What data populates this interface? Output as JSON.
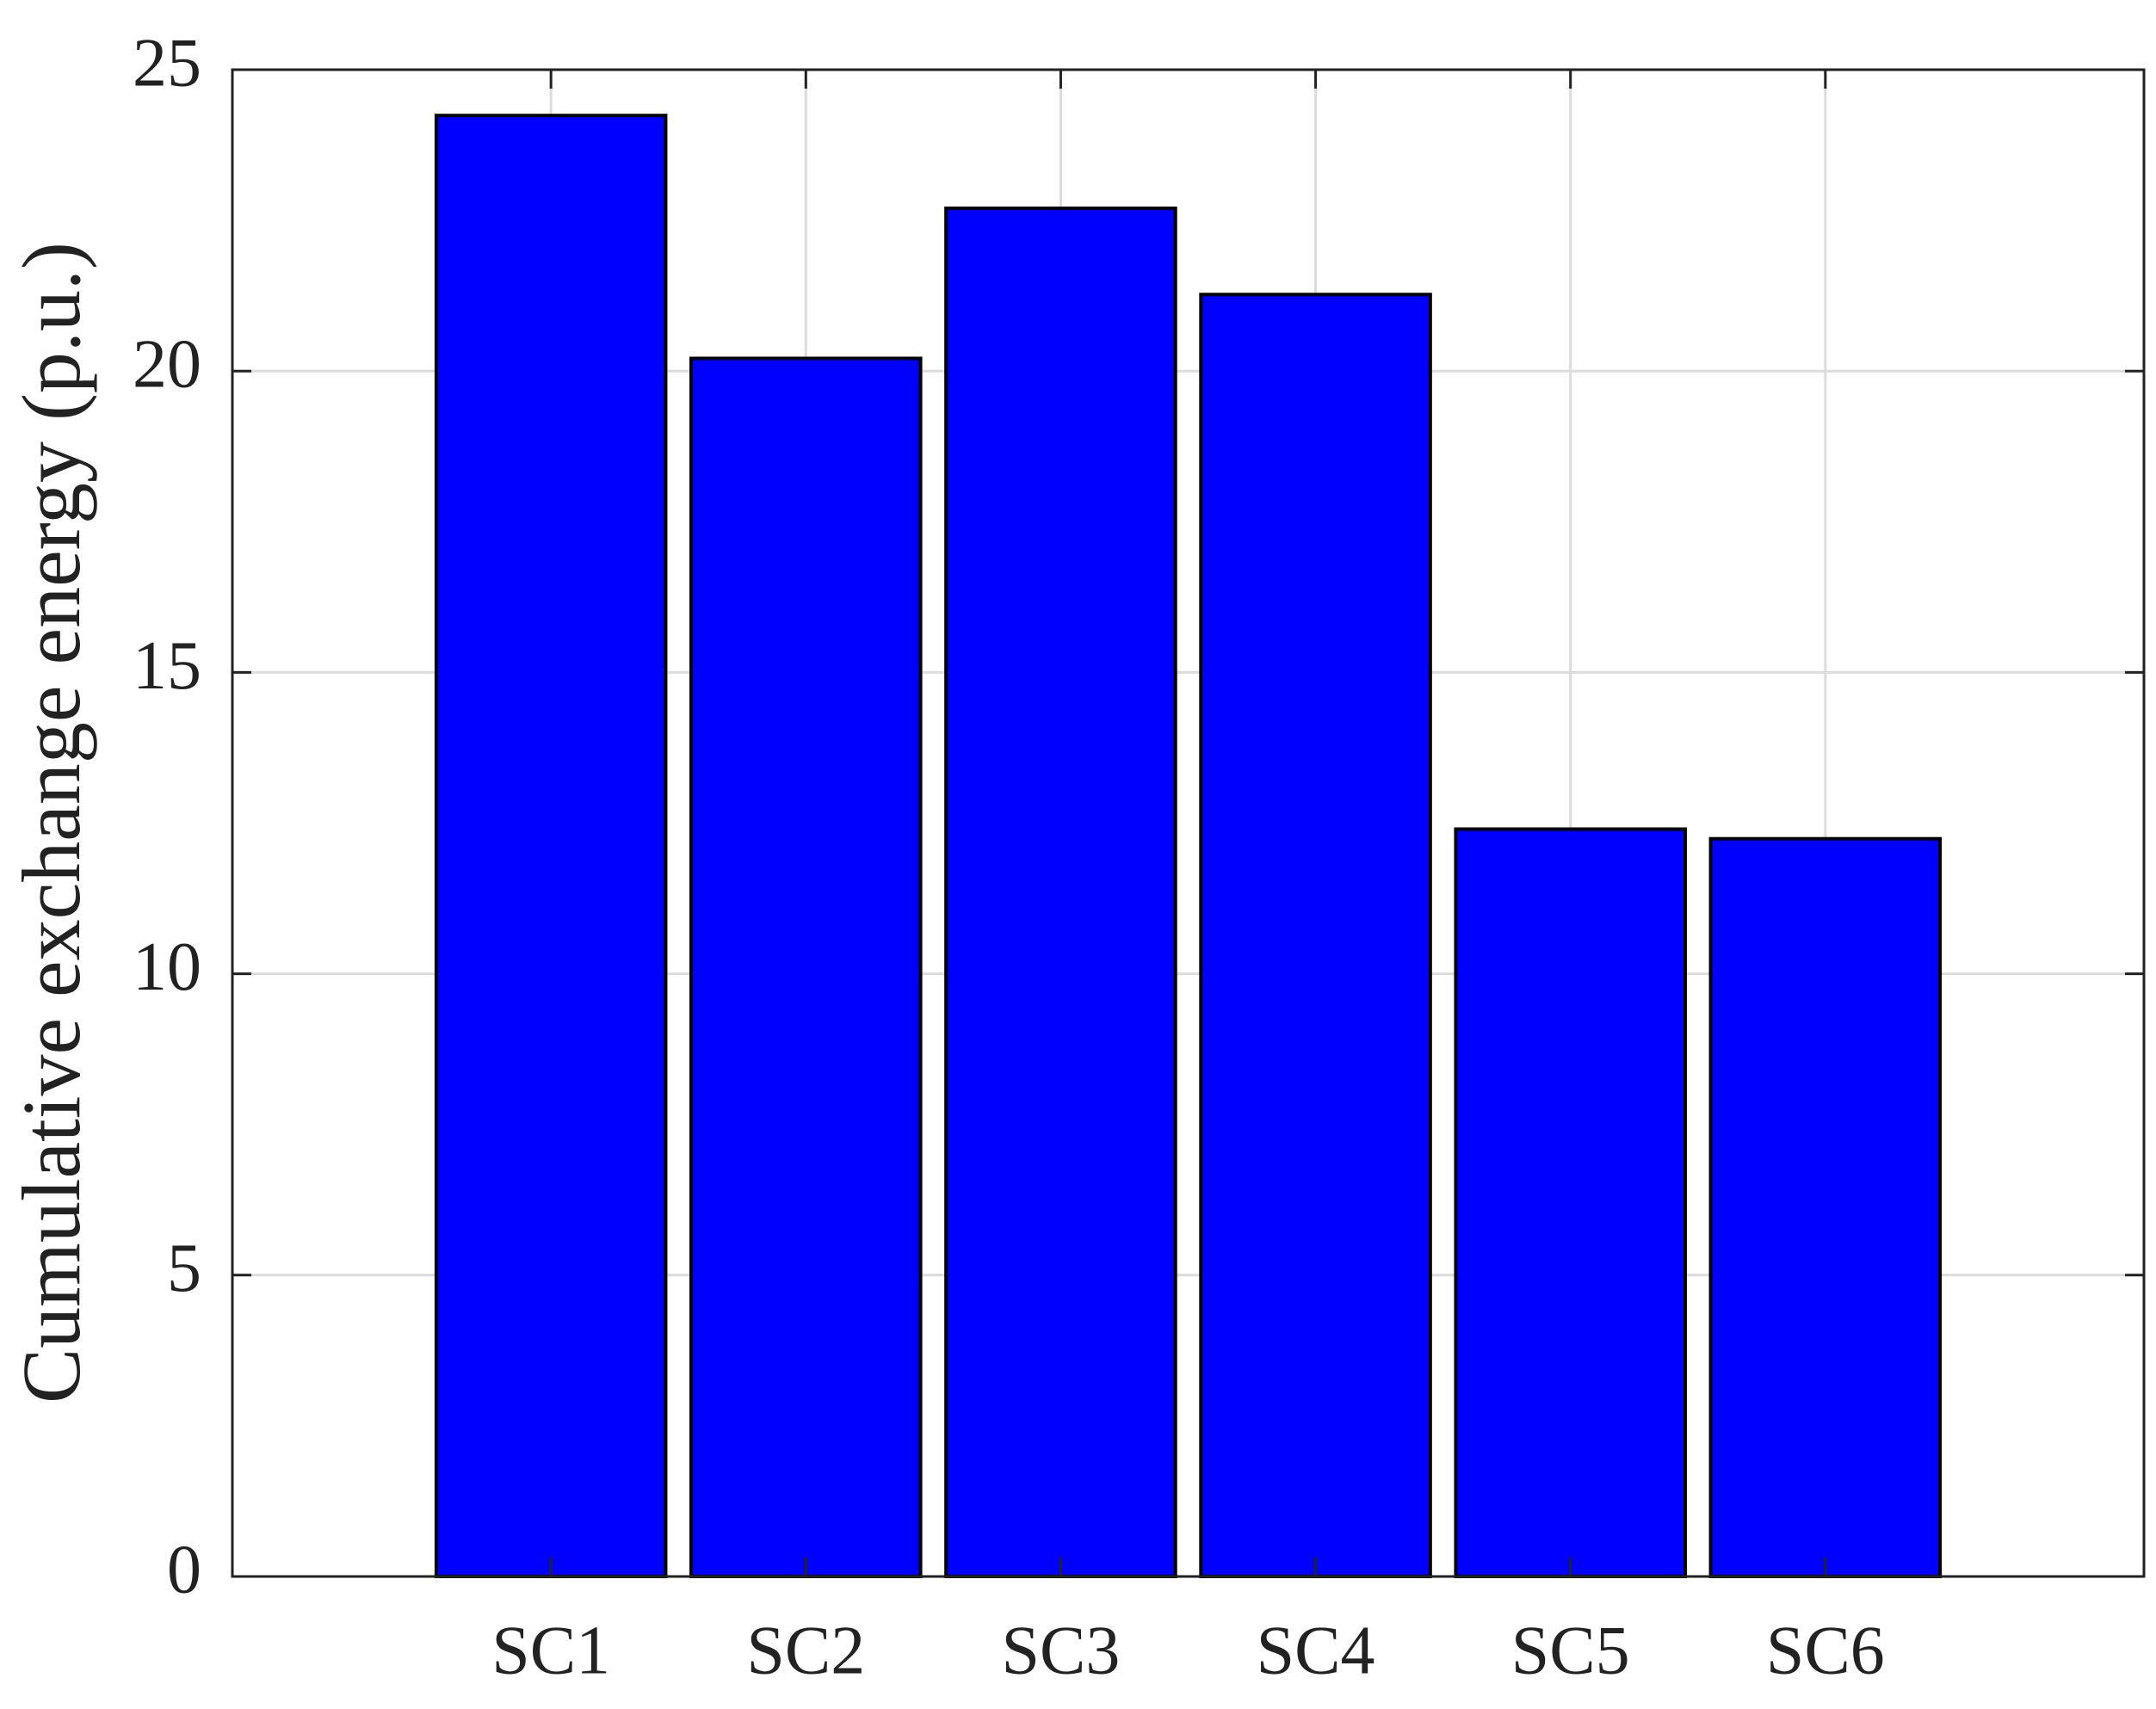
{
  "chart_data": {
    "type": "bar",
    "y_label": "Cumulative exchange energy (p.u.)",
    "categories": [
      "SC1",
      "SC2",
      "SC3",
      "SC4",
      "SC5",
      "SC6"
    ],
    "values": [
      24.24,
      20.21,
      22.7,
      21.27,
      12.4,
      12.24
    ],
    "color": "#0000ff",
    "ylim": [
      0,
      25
    ],
    "yticks": [
      0,
      5,
      10,
      15,
      20,
      25
    ],
    "grid": true
  }
}
